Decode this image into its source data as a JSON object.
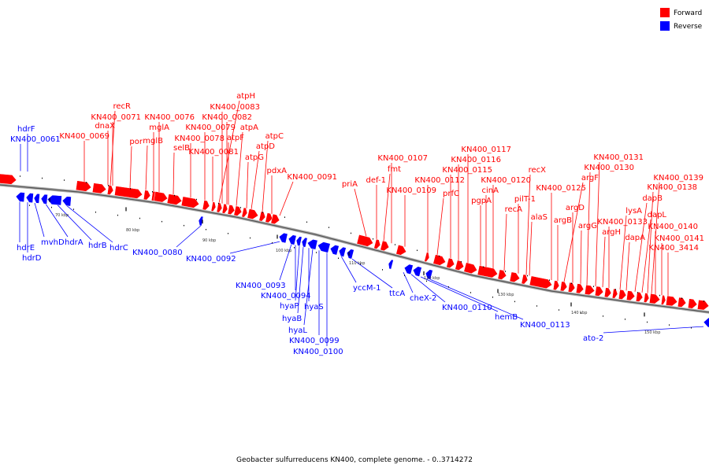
{
  "caption": "Geobacter sulfurreducens KN400, complete genome. - 0..3714272",
  "legend": [
    {
      "label": "Forward",
      "color": "#ff0000"
    },
    {
      "label": "Reverse",
      "color": "#0000ff"
    }
  ],
  "colors": {
    "forward": "#ff0000",
    "reverse": "#0000ff",
    "backbone": "#888888"
  },
  "ticks": [
    "70 kbp",
    "80 kbp",
    "90 kbp",
    "100 kbp",
    "110 kbp",
    "120 kbp",
    "130 kbp",
    "140 kbp",
    "150 kbp"
  ],
  "forward_genes": [
    "recR",
    "KN400_0071",
    "dnaX",
    "KN400_0069",
    "por",
    "mglB",
    "mglA",
    "KN400_0076",
    "selB",
    "KN400_0078",
    "KN400_0079",
    "KN400_0081",
    "atpH",
    "KN400_0083",
    "KN400_0082",
    "atpF",
    "atpA",
    "atpG",
    "atpD",
    "atpC",
    "pdxA",
    "KN400_0091",
    "priA",
    "def-1",
    "fmt",
    "KN400_0107",
    "KN400_0109",
    "KN400_0112",
    "prfC",
    "KN400_0115",
    "KN400_0116",
    "KN400_0117",
    "pgpA",
    "cinA",
    "KN400_0120",
    "recA",
    "pilT-1",
    "recX",
    "alaS",
    "KN400_0125",
    "argB",
    "argF",
    "argD",
    "argG",
    "KN400_0130",
    "KN400_0131",
    "argH",
    "KN400_0133",
    "lysA",
    "dapA",
    "dapB",
    "dapL",
    "KN400_0138",
    "KN400_0139",
    "KN400_0140",
    "KN400_0141",
    "KN400_3414"
  ],
  "reverse_genes": [
    "hdrF",
    "KN400_0061",
    "hdrE",
    "hdrD",
    "mvhD",
    "hdrA",
    "hdrB",
    "hdrC",
    "KN400_0080",
    "KN400_0092",
    "KN400_0093",
    "KN400_0094",
    "hyaP",
    "hyaB",
    "hyaS",
    "hyaL",
    "KN400_0099",
    "KN400_0100",
    "yccM-1",
    "ttcA",
    "cheX-2",
    "KN400_0110",
    "hemB",
    "KN400_0113",
    "ato-2"
  ]
}
